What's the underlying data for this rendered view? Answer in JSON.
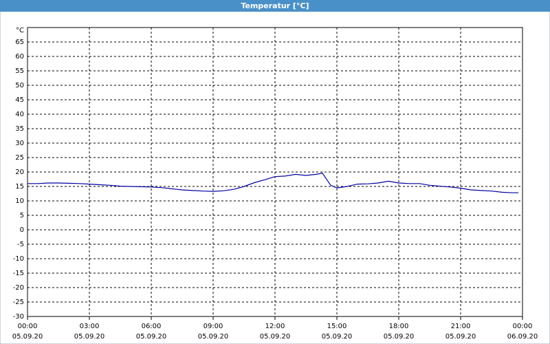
{
  "chart_data": {
    "type": "line",
    "title": "Temperatur [°C]",
    "y_label": "°C",
    "x": [
      0,
      0.5,
      1,
      1.5,
      2,
      2.5,
      3,
      3.5,
      4,
      4.5,
      5,
      5.5,
      6,
      6.5,
      7,
      7.5,
      8,
      8.5,
      9,
      9.5,
      10,
      10.5,
      11,
      11.5,
      12,
      12.5,
      13,
      13.5,
      14,
      14.3,
      14.7,
      15,
      15.5,
      16,
      16.5,
      17,
      17.5,
      18,
      18.5,
      19,
      19.5,
      20,
      20.5,
      21,
      21.5,
      22,
      22.5,
      23,
      23.5,
      23.8
    ],
    "series": [
      {
        "name": "Temperatur",
        "color": "#0000a0",
        "values": [
          16,
          16,
          16.2,
          16.2,
          16.1,
          16,
          15.8,
          15.6,
          15.4,
          15.1,
          15,
          14.9,
          14.8,
          14.6,
          14.2,
          13.8,
          13.6,
          13.4,
          13.3,
          13.5,
          14,
          15,
          16.3,
          17.3,
          18.4,
          18.6,
          19.2,
          18.8,
          19.2,
          19.6,
          15.4,
          14.5,
          15,
          15.8,
          15.9,
          16.2,
          16.8,
          16.2,
          16,
          16,
          15.4,
          15.1,
          14.8,
          14.4,
          13.8,
          13.6,
          13.4,
          13,
          12.8,
          12.8
        ]
      }
    ],
    "xlim": [
      0,
      24
    ],
    "xticks": [
      {
        "value": 0,
        "label": "00:00"
      },
      {
        "value": 3,
        "label": "03:00"
      },
      {
        "value": 6,
        "label": "06:00"
      },
      {
        "value": 9,
        "label": "09:00"
      },
      {
        "value": 12,
        "label": "12:00"
      },
      {
        "value": 15,
        "label": "15:00"
      },
      {
        "value": 18,
        "label": "18:00"
      },
      {
        "value": 21,
        "label": "21:00"
      },
      {
        "value": 24,
        "label": "00:00"
      }
    ],
    "xtick_dates": [
      "05.09.20",
      "05.09.20",
      "05.09.20",
      "05.09.20",
      "05.09.20",
      "05.09.20",
      "05.09.20",
      "05.09.20",
      "06.09.20"
    ],
    "ylim": [
      -30,
      70
    ],
    "yticks": [
      -30,
      -25,
      -20,
      -15,
      -10,
      -5,
      0,
      5,
      10,
      15,
      20,
      25,
      30,
      35,
      40,
      45,
      50,
      55,
      60,
      65
    ],
    "grid": true
  }
}
